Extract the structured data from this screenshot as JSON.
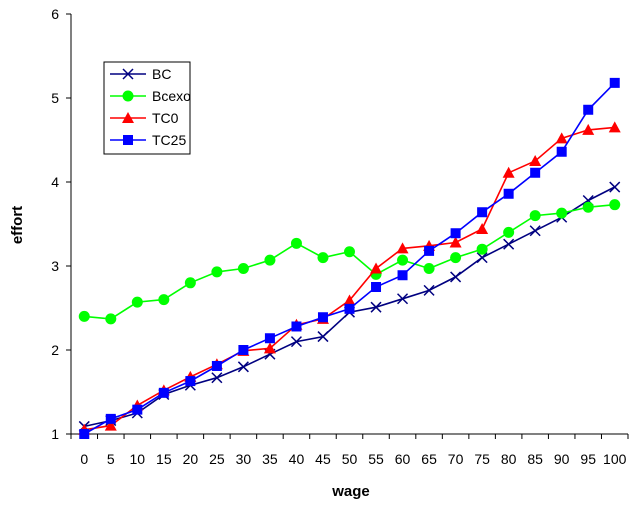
{
  "chart_data": {
    "type": "line",
    "xlabel": "wage",
    "ylabel": "effort",
    "ylim": [
      1,
      6
    ],
    "yticks": [
      1,
      2,
      3,
      4,
      5,
      6
    ],
    "x": [
      0,
      5,
      10,
      15,
      20,
      25,
      30,
      35,
      40,
      45,
      50,
      55,
      60,
      65,
      70,
      75,
      80,
      85,
      90,
      95,
      100
    ],
    "grid": false,
    "legend_position": "top-left",
    "series": [
      {
        "name": "BC",
        "color": "#000080",
        "marker": "x",
        "values": [
          1.09,
          1.16,
          1.25,
          1.47,
          1.58,
          1.67,
          1.8,
          1.95,
          2.1,
          2.16,
          2.45,
          2.51,
          2.61,
          2.71,
          2.87,
          3.1,
          3.26,
          3.42,
          3.58,
          3.78,
          3.94
        ]
      },
      {
        "name": "Bcexo",
        "color": "#00ff00",
        "marker": "circle",
        "values": [
          2.4,
          2.37,
          2.57,
          2.6,
          2.8,
          2.93,
          2.97,
          3.07,
          3.27,
          3.1,
          3.17,
          2.9,
          3.07,
          2.97,
          3.1,
          3.2,
          3.4,
          3.6,
          3.63,
          3.7,
          3.73
        ]
      },
      {
        "name": "TC0",
        "color": "#ff0000",
        "marker": "triangle",
        "values": [
          1.05,
          1.1,
          1.34,
          1.52,
          1.68,
          1.83,
          1.99,
          2.02,
          2.3,
          2.37,
          2.59,
          2.97,
          3.21,
          3.24,
          3.28,
          3.44,
          4.11,
          4.25,
          4.52,
          4.62,
          4.65
        ]
      },
      {
        "name": "TC25",
        "color": "#0000ff",
        "marker": "square",
        "values": [
          1.0,
          1.18,
          1.29,
          1.49,
          1.63,
          1.81,
          2.0,
          2.14,
          2.28,
          2.39,
          2.49,
          2.75,
          2.89,
          3.18,
          3.39,
          3.64,
          3.86,
          4.11,
          4.36,
          4.86,
          5.18
        ]
      }
    ]
  }
}
